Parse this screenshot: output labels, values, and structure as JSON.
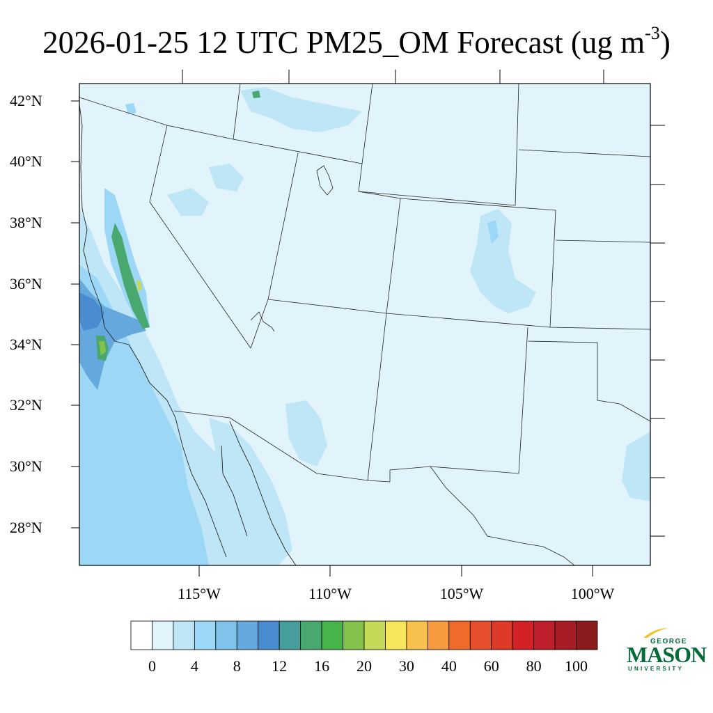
{
  "title": {
    "main": "2026-01-25 12 UTC PM25_OM Forecast (ug m",
    "sup": "-3",
    "close": ")"
  },
  "lat_labels": [
    "42°N",
    "40°N",
    "38°N",
    "36°N",
    "34°N",
    "32°N",
    "30°N",
    "28°N"
  ],
  "lon_labels": [
    "115°W",
    "110°W",
    "105°W",
    "100°W"
  ],
  "colorbar": {
    "labels": [
      "0",
      "4",
      "8",
      "12",
      "16",
      "20",
      "30",
      "40",
      "60",
      "80",
      "100"
    ],
    "colors": [
      "#ffffff",
      "#e1f3fb",
      "#bfe6f7",
      "#9cd8f5",
      "#7fc3ea",
      "#64a8de",
      "#4a8cd0",
      "#469e9c",
      "#48a86f",
      "#46b44a",
      "#84c24e",
      "#c4d957",
      "#f7e65a",
      "#f8c04c",
      "#f59a3e",
      "#f06a2c",
      "#e64e2c",
      "#dd3a28",
      "#d42027",
      "#bf1e2d",
      "#a81c26",
      "#8c1b1d"
    ]
  },
  "map": {
    "background_color": "#e1f3fb",
    "light_color": "#bfe6f7",
    "mid_color": "#9cd8f5",
    "dark_color": "#64a8de",
    "deep_color": "#4a8cd0",
    "green_color": "#48a86f",
    "yellow_color": "#c4d957"
  },
  "logo": {
    "line1": "GEORGE",
    "line2": "MASON",
    "line3": "UNIVERSITY",
    "color": "#046a38",
    "accent": "#f2c230"
  }
}
